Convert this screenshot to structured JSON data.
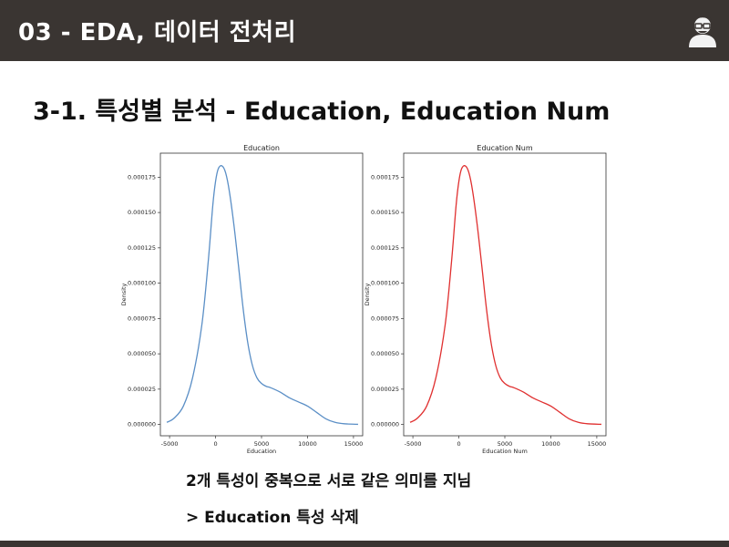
{
  "header": {
    "title": "03 - EDA, 데이터 전처리",
    "avatar_icon": "person-with-glasses-icon"
  },
  "slide": {
    "heading": "3-1. 특성별 분석 - Education, Education Num",
    "note_line1": "2개 특성이 중복으로 서로 같은 의미를 지님",
    "note_line2": "> Education 특성 삭제"
  },
  "colors": {
    "bar": "#3a3532",
    "left_curve": "#5b8fc6",
    "right_curve": "#e03030"
  },
  "chart_data": [
    {
      "type": "line",
      "title": "Education",
      "xlabel": "Education",
      "ylabel": "Density",
      "xlim": [
        -6000,
        16000
      ],
      "ylim": [
        -8e-06,
        0.000192
      ],
      "xticks": [
        -5000,
        0,
        5000,
        10000,
        15000
      ],
      "yticks": [
        0.0,
        2.5e-05,
        5e-05,
        7.5e-05,
        0.0001,
        0.000125,
        0.00015,
        0.000175
      ],
      "ytick_labels": [
        "0.000000",
        "0.000025",
        "0.000050",
        "0.000075",
        "0.000100",
        "0.000125",
        "0.000150",
        "0.000175"
      ],
      "xtick_labels": [
        "-5000",
        "0",
        "5000",
        "10000",
        "15000"
      ],
      "series": [
        {
          "x": [
            -5300,
            -4500,
            -3500,
            -2500,
            -1500,
            -800,
            -300,
            0,
            300,
            700,
            1100,
            1500,
            2000,
            2500,
            3000,
            3500,
            4000,
            4500,
            5000,
            5500,
            6000,
            7000,
            8000,
            9000,
            10000,
            11000,
            12000,
            13000,
            14000,
            15500
          ],
          "y": [
            1.5e-06,
            4.5e-06,
            1.3e-05,
            3.3e-05,
            7e-05,
            0.000115,
            0.000155,
            0.000172,
            0.000181,
            0.000183,
            0.000178,
            0.000165,
            0.000141,
            0.000112,
            8.2e-05,
            5.8e-05,
            4.2e-05,
            3.3e-05,
            2.9e-05,
            2.7e-05,
            2.6e-05,
            2.3e-05,
            1.9e-05,
            1.6e-05,
            1.3e-05,
            8.5e-06,
            4e-06,
            1.5e-06,
            5e-07,
            1e-07
          ]
        }
      ]
    },
    {
      "type": "line",
      "title": "Education Num",
      "xlabel": "Education Num",
      "ylabel": "Density",
      "xlim": [
        -6000,
        16000
      ],
      "ylim": [
        -8e-06,
        0.000192
      ],
      "xticks": [
        -5000,
        0,
        5000,
        10000,
        15000
      ],
      "yticks": [
        0.0,
        2.5e-05,
        5e-05,
        7.5e-05,
        0.0001,
        0.000125,
        0.00015,
        0.000175
      ],
      "ytick_labels": [
        "0.000000",
        "0.000025",
        "0.000050",
        "0.000075",
        "0.000100",
        "0.000125",
        "0.000150",
        "0.000175"
      ],
      "xtick_labels": [
        "-5000",
        "0",
        "5000",
        "10000",
        "15000"
      ],
      "series": [
        {
          "x": [
            -5300,
            -4500,
            -3500,
            -2500,
            -1500,
            -800,
            -300,
            0,
            300,
            700,
            1100,
            1500,
            2000,
            2500,
            3000,
            3500,
            4000,
            4500,
            5000,
            5500,
            6000,
            7000,
            8000,
            9000,
            10000,
            11000,
            12000,
            13000,
            14000,
            15500
          ],
          "y": [
            1.5e-06,
            4.5e-06,
            1.3e-05,
            3.3e-05,
            7e-05,
            0.000115,
            0.000155,
            0.000172,
            0.000181,
            0.000183,
            0.000178,
            0.000165,
            0.000141,
            0.000112,
            8.2e-05,
            5.8e-05,
            4.2e-05,
            3.3e-05,
            2.9e-05,
            2.7e-05,
            2.6e-05,
            2.3e-05,
            1.9e-05,
            1.6e-05,
            1.3e-05,
            8.5e-06,
            4e-06,
            1.5e-06,
            5e-07,
            1e-07
          ]
        }
      ]
    }
  ]
}
